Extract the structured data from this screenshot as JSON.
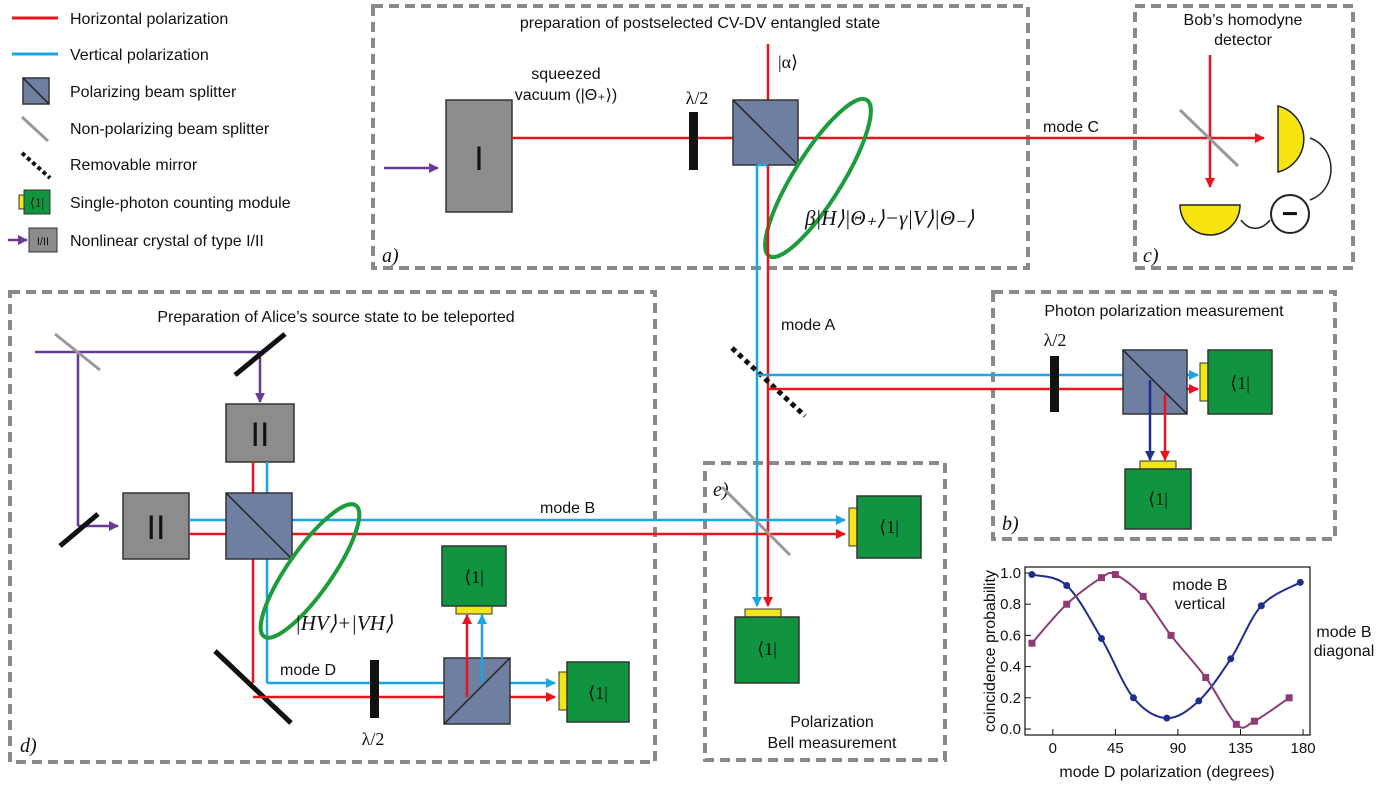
{
  "legend": [
    {
      "label": "Horizontal polarization"
    },
    {
      "label": "Vertical polarization"
    },
    {
      "label": "Polarizing beam splitter"
    },
    {
      "label": "Non-polarizing beam splitter"
    },
    {
      "label": "Removable mirror"
    },
    {
      "label": "Single-photon counting module",
      "icon_text": "⟨1|"
    },
    {
      "label": "Nonlinear crystal of type I/II",
      "icon_text": "I/II"
    }
  ],
  "panels": {
    "a": {
      "title": "preparation of postselected CV-DV entangled state",
      "tag": "a)"
    },
    "b": {
      "title": "Photon polarization measurement",
      "tag": "b)"
    },
    "c": {
      "title_line1": "Bob’s homodyne",
      "title_line2": "detector",
      "tag": "c)"
    },
    "d": {
      "title": "Preparation of Alice’s source state to be teleported",
      "tag": "d)"
    },
    "e": {
      "title_line1": "Polarization",
      "title_line2": "Bell  measurement",
      "tag": "e)"
    }
  },
  "labels": {
    "crystal_type1": "I",
    "crystal_type2": "II",
    "squeezed_line1": "squeezed",
    "squeezed_line2": "vacuum (|Θ₊⟩)",
    "alpha": "|α⟩",
    "halfwave": "λ/2",
    "detector": "⟨1|",
    "mode_c": "mode C",
    "mode_a": "mode A",
    "mode_b": "mode B",
    "mode_d": "mode D",
    "entangled_state": "β|H⟩|Θ₊⟩−γ|V⟩|Θ₋⟩",
    "bell_state": "|HV⟩+|VH⟩",
    "minus": "−"
  },
  "colors": {
    "horizontal": "#e8131b",
    "vertical": "#19a6e6",
    "pump": "#6b3a96",
    "pbs": "#6f7fa1",
    "crystal": "#8c8c8c",
    "detector": "#119440",
    "detector_window": "#f2e61a",
    "entanglement": "#1c9c3a",
    "fit_vertical": "#1f2e8c",
    "fit_diagonal": "#8e3a75",
    "panel_border": "#8a8a8a"
  },
  "chart_data": {
    "type": "scatter",
    "xlabel": "mode D polarization (degrees)",
    "ylabel": "coincidence probability",
    "xlim": [
      -20,
      185
    ],
    "ylim": [
      0,
      1.0
    ],
    "xticks": [
      0,
      45,
      90,
      135,
      180
    ],
    "yticks": [
      0.0,
      0.2,
      0.4,
      0.6,
      0.8,
      1.0
    ],
    "series": [
      {
        "name": "mode B vertical",
        "name_line1": "mode B",
        "name_line2": "vertical",
        "x": [
          -15,
          10,
          35,
          58,
          82,
          105,
          128,
          150,
          178
        ],
        "y": [
          0.99,
          0.92,
          0.58,
          0.2,
          0.07,
          0.18,
          0.45,
          0.79,
          0.94
        ]
      },
      {
        "name": "mode B diagonal",
        "name_line1": "mode B",
        "name_line2": "diagonal",
        "x": [
          -15,
          10,
          35,
          45,
          65,
          85,
          110,
          132,
          145,
          170
        ],
        "y": [
          0.55,
          0.8,
          0.97,
          0.99,
          0.85,
          0.6,
          0.33,
          0.03,
          0.05,
          0.2
        ]
      }
    ]
  }
}
